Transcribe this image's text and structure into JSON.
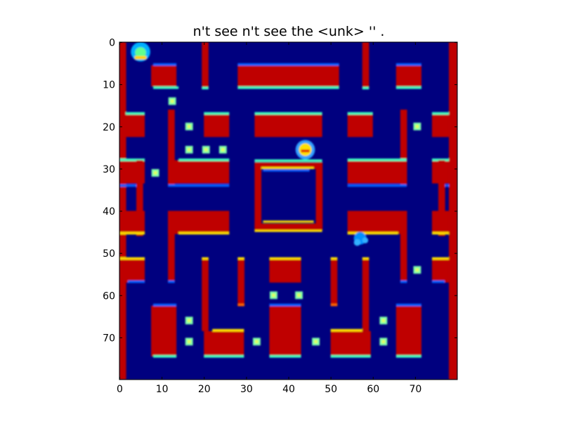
{
  "title": "n't see n't see the <unk> '' .",
  "chart_data": {
    "type": "heatmap",
    "colormap": "jet",
    "title": "n't see n't see the <unk> '' .",
    "xlim": [
      0,
      80
    ],
    "ylim": [
      80,
      0
    ],
    "x_ticks": [
      "0",
      "10",
      "20",
      "30",
      "40",
      "50",
      "60",
      "70"
    ],
    "y_ticks": [
      "0",
      "10",
      "20",
      "30",
      "40",
      "50",
      "60",
      "70"
    ],
    "colors": {
      "background": "#00007f",
      "wall": "#bf0000",
      "edge_cyan": "#40ffbf",
      "edge_blue": "#0060ff",
      "edge_yellow": "#ffe000",
      "pellet": "#7fffaa"
    }
  }
}
